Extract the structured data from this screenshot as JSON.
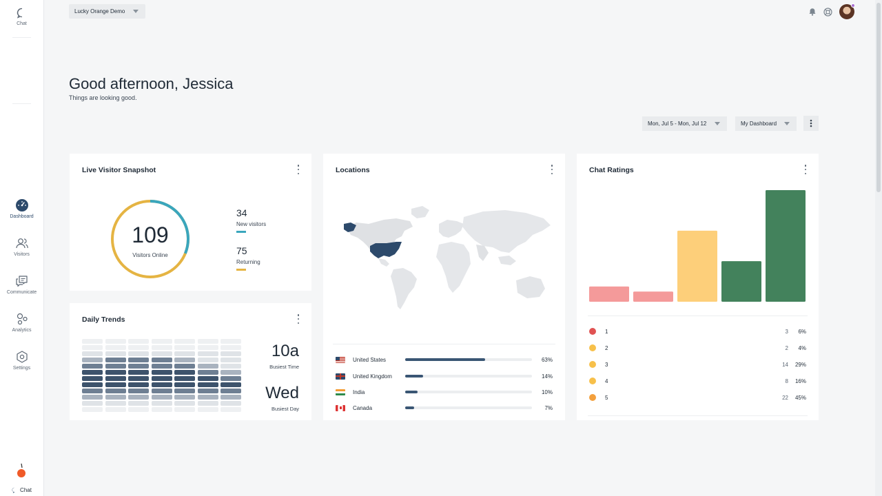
{
  "sidebar": {
    "top": {
      "chat_label": "Chat"
    },
    "items": [
      {
        "key": "dashboard",
        "label": "Dashboard",
        "icon": "dashboard-icon",
        "active": true
      },
      {
        "key": "visitors",
        "label": "Visitors",
        "icon": "visitors-icon",
        "active": false
      },
      {
        "key": "communicate",
        "label": "Communicate",
        "icon": "communicate-icon",
        "active": false
      },
      {
        "key": "analytics",
        "label": "Analytics",
        "icon": "analytics-icon",
        "active": false
      },
      {
        "key": "settings",
        "label": "Settings",
        "icon": "settings-icon",
        "active": false
      }
    ],
    "bottom_chat_label": "Chat",
    "brand_icon": "orange-logo-icon"
  },
  "topbar": {
    "org_select": "Lucky Orange Demo",
    "icons": [
      "bell-icon",
      "help-icon",
      "avatar"
    ]
  },
  "greeting": {
    "title": "Good afternoon, Jessica",
    "subtitle": "Things are looking good."
  },
  "controls": {
    "date_range": "Mon, Jul 5 - Mon, Jul 12",
    "dashboard": "My Dashboard"
  },
  "colors": {
    "accent_navy": "#2d4a6b",
    "teal": "#3aa6bd",
    "gold": "#e5b443",
    "red": "#f49a9a",
    "yellow": "#fdcf7a",
    "green": "#43825c"
  },
  "live_snapshot": {
    "title": "Live Visitor Snapshot",
    "total": "109",
    "total_label": "Visitors Online",
    "new_visitors": "34",
    "new_label": "New visitors",
    "returning": "75",
    "returning_label": "Returning"
  },
  "daily_trends": {
    "title": "Daily Trends",
    "busiest_time": "10a",
    "busiest_time_label": "Busiest Time",
    "busiest_day": "Wed",
    "busiest_day_label": "Busiest Day"
  },
  "locations": {
    "title": "Locations",
    "rows": [
      {
        "country": "United States",
        "pct": "63%",
        "value": 0.63
      },
      {
        "country": "United Kingdom",
        "pct": "14%",
        "value": 0.14
      },
      {
        "country": "India",
        "pct": "10%",
        "value": 0.1
      },
      {
        "country": "Canada",
        "pct": "7%",
        "value": 0.07
      }
    ]
  },
  "chat_ratings": {
    "title": "Chat Ratings",
    "rows": [
      {
        "rating": "1",
        "count": "3",
        "pct": "6%"
      },
      {
        "rating": "2",
        "count": "2",
        "pct": "4%"
      },
      {
        "rating": "3",
        "count": "14",
        "pct": "29%"
      },
      {
        "rating": "4",
        "count": "8",
        "pct": "16%"
      },
      {
        "rating": "5",
        "count": "22",
        "pct": "45%"
      }
    ]
  },
  "chart_data": {
    "type": "bar",
    "categories": [
      "1",
      "2",
      "3",
      "4",
      "5"
    ],
    "values": [
      3,
      2,
      14,
      8,
      22
    ],
    "colors": [
      "#f49a9a",
      "#f49a9a",
      "#fdcf7a",
      "#43825c",
      "#43825c"
    ],
    "ylim": [
      0,
      22
    ],
    "grid": false
  }
}
